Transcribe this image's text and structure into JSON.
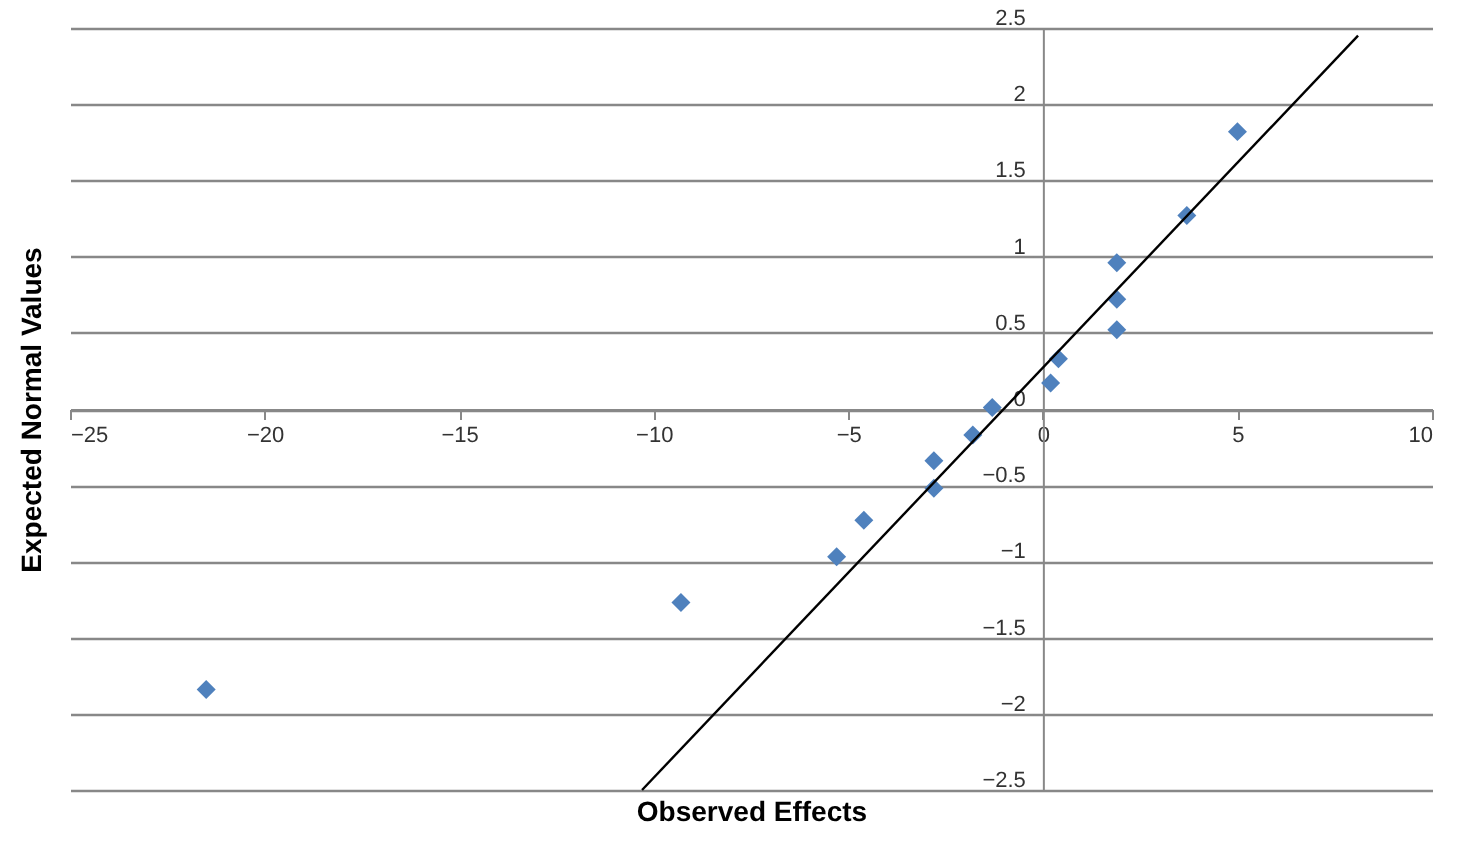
{
  "chart_data": {
    "type": "scatter",
    "xlabel": "Observed Effects",
    "ylabel": "Expected Normal Values",
    "xlim": [
      -25,
      10
    ],
    "ylim": [
      -2.5,
      2.5
    ],
    "xticks": [
      -25,
      -20,
      -15,
      -10,
      -5,
      0,
      5,
      10
    ],
    "yticks": [
      -2.5,
      -2,
      -1.5,
      -1,
      -0.5,
      0,
      0.5,
      1,
      1.5,
      2,
      2.5
    ],
    "grid": "y",
    "series": [
      {
        "color": "#4f81bd",
        "marker": "diamond",
        "x": [
          -21.5,
          -9.3,
          -5.3,
          -4.6,
          -2.8,
          -2.8,
          -1.8,
          -1.3,
          0.2,
          0.4,
          1.9,
          1.9,
          1.9,
          3.7,
          5.0
        ],
        "values": [
          -1.84,
          -1.27,
          -0.97,
          -0.73,
          -0.34,
          -0.52,
          -0.17,
          0.01,
          0.17,
          0.33,
          0.52,
          0.72,
          0.96,
          1.27,
          1.82
        ]
      },
      {
        "type": "line",
        "color": "#000000",
        "x": [
          -10.3,
          8.1
        ],
        "values": [
          -2.5,
          2.45
        ]
      }
    ]
  }
}
